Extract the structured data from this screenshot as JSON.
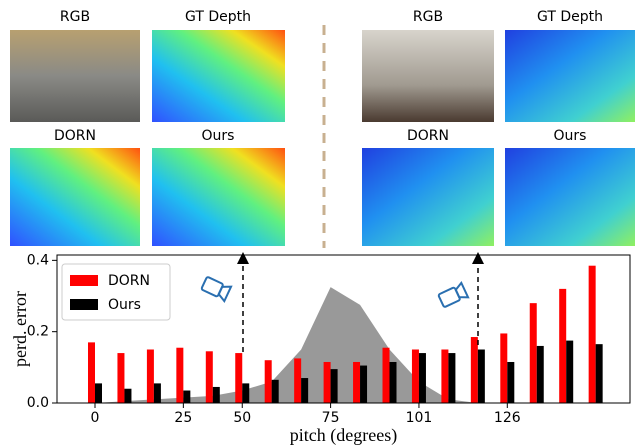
{
  "panels": {
    "left": [
      "RGB",
      "GT Depth",
      "DORN",
      "Ours"
    ],
    "right": [
      "RGB",
      "GT Depth",
      "DORN",
      "Ours"
    ]
  },
  "chart_data": {
    "type": "bar",
    "xlabel": "pitch (degrees)",
    "ylabel": "perd. error",
    "categories": [
      "0",
      null,
      null,
      "25",
      null,
      "50",
      null,
      null,
      "75",
      null,
      null,
      "101",
      null,
      null,
      "126",
      null,
      null,
      null
    ],
    "series": [
      {
        "name": "DORN",
        "color": "#ff0000",
        "values": [
          0.17,
          0.14,
          0.15,
          0.155,
          0.145,
          0.14,
          0.12,
          0.125,
          0.115,
          0.115,
          0.155,
          0.15,
          0.15,
          0.185,
          0.195,
          0.28,
          0.32,
          0.385
        ]
      },
      {
        "name": "Ours",
        "color": "#000000",
        "values": [
          0.055,
          0.04,
          0.055,
          0.035,
          0.045,
          0.055,
          0.065,
          0.07,
          0.095,
          0.105,
          0.115,
          0.14,
          0.14,
          0.15,
          0.115,
          0.16,
          0.175,
          0.165
        ]
      }
    ],
    "distribution": {
      "color": "#999999",
      "values": [
        0,
        0.005,
        0.01,
        0.015,
        0.02,
        0.035,
        0.06,
        0.15,
        0.325,
        0.275,
        0.15,
        0.06,
        0.01,
        0,
        0,
        0,
        0,
        0
      ]
    },
    "ylim": [
      0,
      0.415
    ],
    "yticks": [
      {
        "value": 0,
        "label": "0.0"
      },
      0.2,
      0.4
    ],
    "legend": "upper left"
  }
}
